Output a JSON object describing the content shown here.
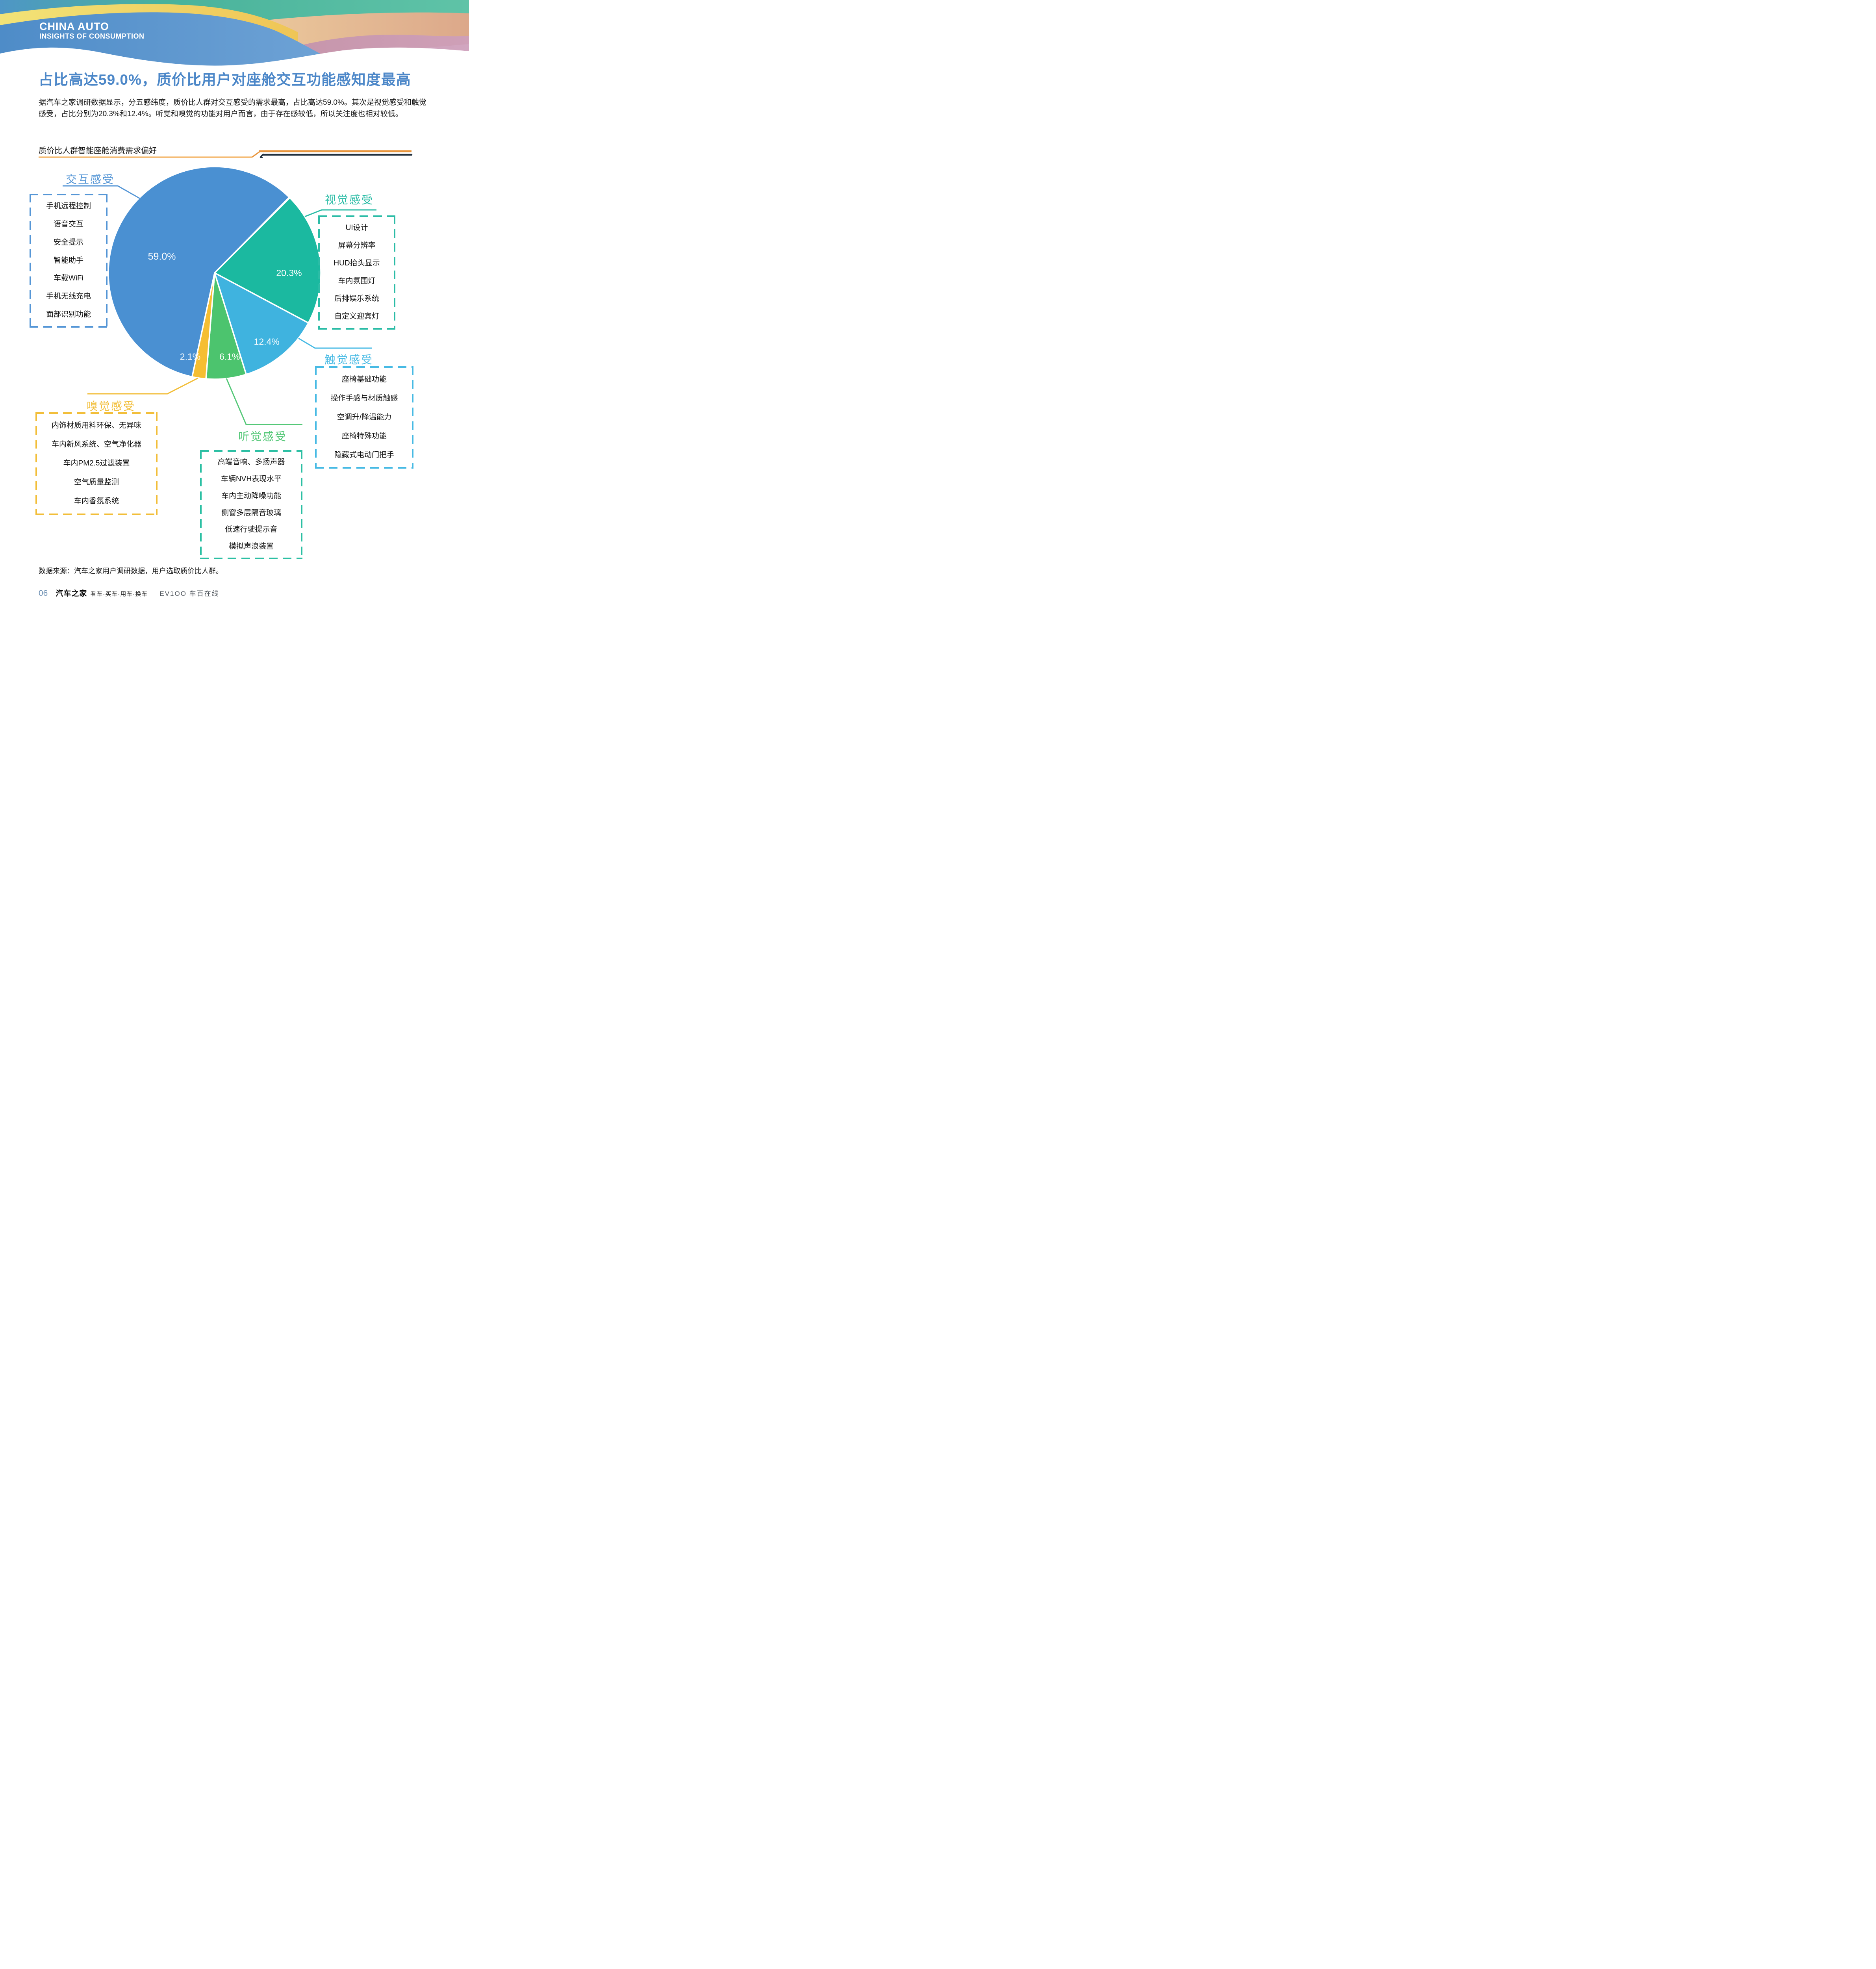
{
  "header": {
    "brand_line1": "CHINA AUTO",
    "brand_line2": "INSIGHTS OF CONSUMPTION"
  },
  "title": "占比高达59.0%，质价比用户对座舱交互功能感知度最高",
  "intro": "据汽车之家调研数据显示，分五感纬度，质价比人群对交互感受的需求最高，占比高达59.0%。其次是视觉感受和触觉感受，占比分别为20.3%和12.4%。听觉和嗅觉的功能对用户而言，由于存在感较低，所以关注度也相对较低。",
  "chart_title": "质价比人群智能座舱消费需求偏好",
  "chart_data": {
    "type": "pie",
    "title": "质价比人群智能座舱消费需求偏好",
    "start_angle_deg": 45,
    "legend_position": "callout-boxes",
    "series": [
      {
        "label": "交互感受",
        "value": 59.0,
        "display": "59.0%",
        "color": "#4A90D2"
      },
      {
        "label": "视觉感受",
        "value": 20.3,
        "display": "20.3%",
        "color": "#1BB9A0"
      },
      {
        "label": "触觉感受",
        "value": 12.4,
        "display": "12.4%",
        "color": "#3FB3DF"
      },
      {
        "label": "听觉感受",
        "value": 6.1,
        "display": "6.1%",
        "color": "#4CC46E"
      },
      {
        "label": "嗅觉感受",
        "value": 2.1,
        "display": "2.1%",
        "color": "#F5BE32"
      }
    ]
  },
  "groups": {
    "interaction": {
      "label": "交互感受",
      "color": "#5596D6",
      "items": [
        "手机远程控制",
        "语音交互",
        "安全提示",
        "智能助手",
        "车载WiFi",
        "手机无线充电",
        "面部识别功能"
      ]
    },
    "visual": {
      "label": "视觉感受",
      "color": "#2BBCA6",
      "items": [
        "UI设计",
        "屏幕分辨率",
        "HUD抬头显示",
        "车内氛围灯",
        "后排娱乐系统",
        "自定义迎宾灯"
      ]
    },
    "touch": {
      "label": "触觉感受",
      "color": "#47BAE4",
      "items": [
        "座椅基础功能",
        "操作手感与材质触感",
        "空调升/降温能力",
        "座椅特殊功能",
        "隐藏式电动门把手"
      ]
    },
    "smell": {
      "label": "嗅觉感受",
      "color": "#F2BE39",
      "items": [
        "内饰材质用料环保、无异味",
        "车内新风系统、空气净化器",
        "车内PM2.5过滤装置",
        "空气质量监测",
        "车内香氛系统"
      ]
    },
    "hearing": {
      "label": "听觉感受",
      "color": "#55C878",
      "box_color": "#2BBFA3",
      "items": [
        "高端音响、多扬声器",
        "车辆NVH表现水平",
        "车内主动降噪功能",
        "侧窗多层隔音玻璃",
        "低速行驶提示音",
        "模拟声浪装置"
      ]
    }
  },
  "source_note": "数据来源：汽车之家用户调研数据，用户选取质价比人群。",
  "footer": {
    "page_number": "06",
    "logo": "汽车之家",
    "tagline": "看车·买车·用车·换车",
    "partner": "EV1OO 车百在线"
  }
}
